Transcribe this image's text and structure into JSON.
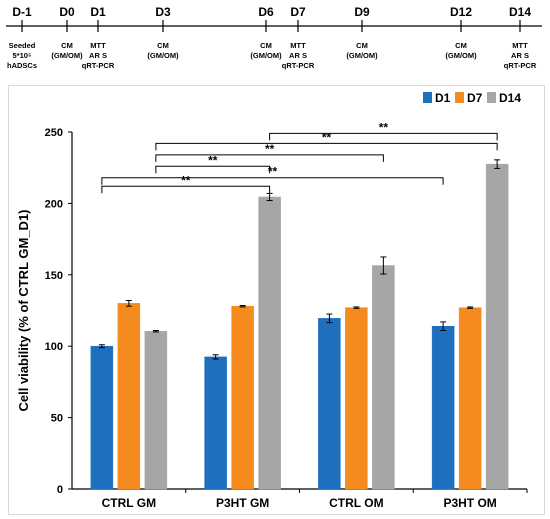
{
  "timeline": {
    "days": [
      {
        "day": "D-1",
        "notes": [
          "Seeded",
          "5*10⁵",
          "hADSCs"
        ]
      },
      {
        "day": "D0",
        "notes": [
          "CM",
          "(GM/OM)"
        ]
      },
      {
        "day": "D1",
        "notes": [
          "MTT",
          "AR S",
          "qRT-PCR"
        ]
      },
      {
        "day": "D3",
        "notes": [
          "CM",
          "(GM/OM)"
        ]
      },
      {
        "day": "D6",
        "notes": [
          "CM",
          "(GM/OM)"
        ]
      },
      {
        "day": "D7",
        "notes": [
          "MTT",
          "AR S",
          "qRT-PCR"
        ]
      },
      {
        "day": "D9",
        "notes": [
          "CM",
          "(GM/OM)"
        ]
      },
      {
        "day": "D12",
        "notes": [
          "CM",
          "(GM/OM)"
        ]
      },
      {
        "day": "D14",
        "notes": [
          "MTT",
          "AR S",
          "qRT-PCR"
        ]
      }
    ]
  },
  "chart_data": {
    "type": "bar",
    "title": "",
    "xlabel": "",
    "ylabel": "Cell viability (% of CTRL GM_D1)",
    "ylim": [
      0,
      250
    ],
    "yticks": [
      0,
      50,
      100,
      150,
      200,
      250
    ],
    "grid": false,
    "legend_position": "top-right",
    "categories": [
      "CTRL GM",
      "P3HT GM",
      "CTRL OM",
      "P3HT OM"
    ],
    "series": [
      {
        "name": "D1",
        "color": "#1f6fbf",
        "values": [
          100,
          92.5,
          119.5,
          114
        ],
        "errors": [
          1,
          1.5,
          3,
          3
        ]
      },
      {
        "name": "D7",
        "color": "#f58a1f",
        "values": [
          130,
          128,
          127,
          127
        ],
        "errors": [
          2,
          0.5,
          0.5,
          0.5
        ]
      },
      {
        "name": "D14",
        "color": "#a6a6a6",
        "values": [
          110.5,
          204.5,
          156.5,
          227.5
        ],
        "errors": [
          0.5,
          2.5,
          6,
          3
        ]
      }
    ],
    "significance": [
      {
        "label": "**",
        "from": [
          0,
          0
        ],
        "to": [
          1,
          2
        ],
        "y": 212
      },
      {
        "label": "**",
        "from": [
          0,
          0
        ],
        "to": [
          3,
          0
        ],
        "y": 218
      },
      {
        "label": "**",
        "from": [
          0,
          2
        ],
        "to": [
          1,
          2
        ],
        "y": 226
      },
      {
        "label": "**",
        "from": [
          0,
          2
        ],
        "to": [
          2,
          2
        ],
        "y": 234
      },
      {
        "label": "**",
        "from": [
          0,
          2
        ],
        "to": [
          3,
          2
        ],
        "y": 242
      },
      {
        "label": "**",
        "from": [
          1,
          2
        ],
        "to": [
          3,
          2
        ],
        "y": 249
      }
    ]
  }
}
